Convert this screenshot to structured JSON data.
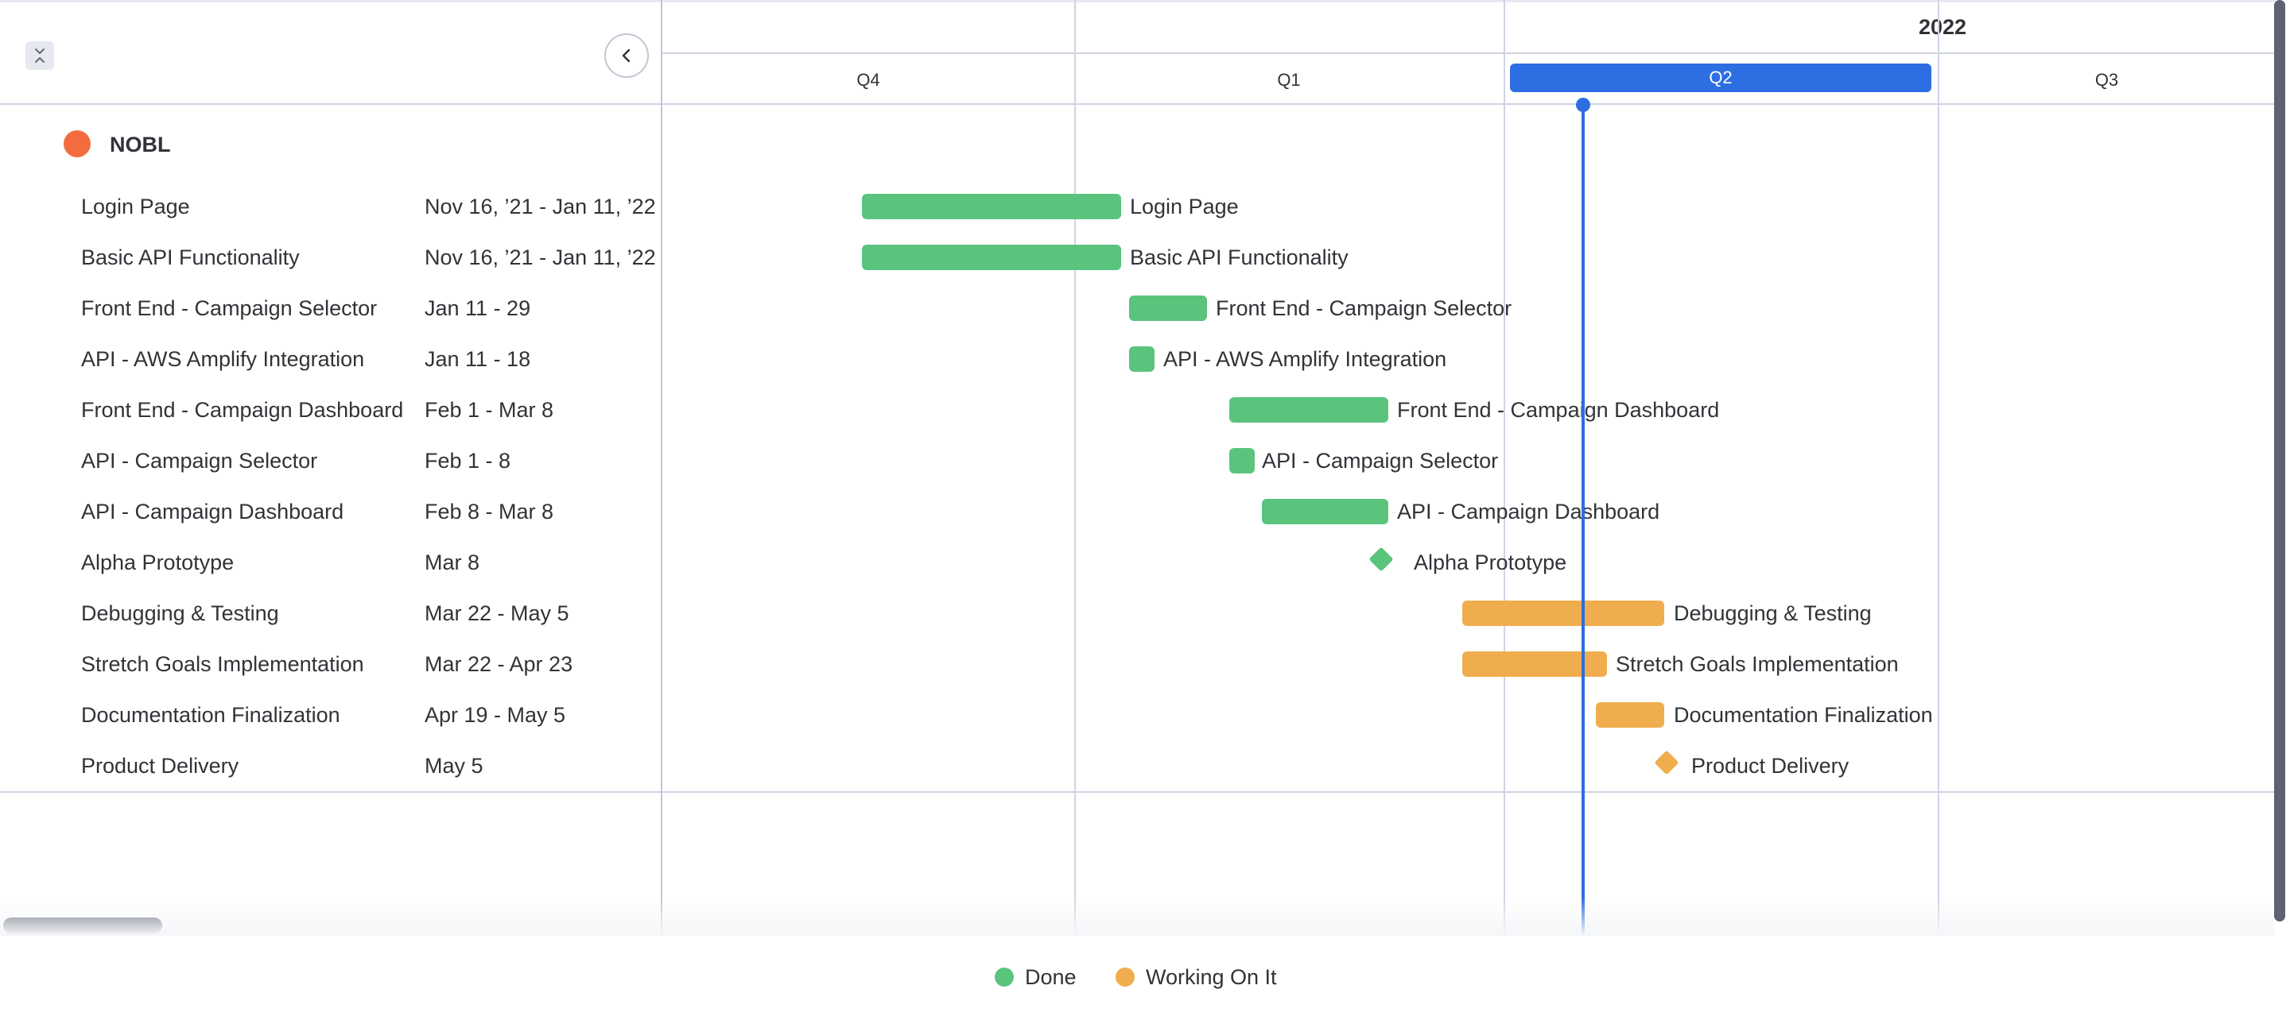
{
  "toolbar": {
    "collapse_icon": "collapse-vertical-icon",
    "back_icon": "chevron-left-icon"
  },
  "group": {
    "name": "NOBL",
    "color": "#f26c3f"
  },
  "tasks": [
    {
      "name": "Login Page",
      "dates": "Nov 16, ’21 - Jan 11, ’22",
      "status": "done",
      "type": "bar"
    },
    {
      "name": "Basic API Functionality",
      "dates": "Nov 16, ’21 - Jan 11, ’22",
      "status": "done",
      "type": "bar"
    },
    {
      "name": "Front End - Campaign Selector",
      "dates": "Jan 11 - 29",
      "status": "done",
      "type": "bar"
    },
    {
      "name": "API - AWS Amplify Integration",
      "dates": "Jan 11 - 18",
      "status": "done",
      "type": "bar"
    },
    {
      "name": "Front End - Campaign Dashboard",
      "dates": "Feb 1 - Mar 8",
      "status": "done",
      "type": "bar"
    },
    {
      "name": "API - Campaign Selector",
      "dates": "Feb 1 - 8",
      "status": "done",
      "type": "bar"
    },
    {
      "name": "API - Campaign Dashboard",
      "dates": "Feb 8 - Mar 8",
      "status": "done",
      "type": "bar"
    },
    {
      "name": "Alpha Prototype",
      "dates": "Mar 8",
      "status": "done",
      "type": "milestone"
    },
    {
      "name": "Debugging & Testing",
      "dates": "Mar 22 - May 5",
      "status": "working",
      "type": "bar"
    },
    {
      "name": "Stretch Goals Implementation",
      "dates": "Mar 22 - Apr 23",
      "status": "working",
      "type": "bar"
    },
    {
      "name": "Documentation Finalization",
      "dates": "Apr 19 - May 5",
      "status": "working",
      "type": "bar"
    },
    {
      "name": "Product Delivery",
      "dates": "May 5",
      "status": "working",
      "type": "milestone"
    }
  ],
  "timeline": {
    "year": "2022",
    "quarters": [
      {
        "label": "Q4",
        "active": false
      },
      {
        "label": "Q1",
        "active": false
      },
      {
        "label": "Q2",
        "active": true
      },
      {
        "label": "Q3",
        "active": false
      }
    ],
    "today": "Apr 19, ’22"
  },
  "legend": [
    {
      "label": "Done",
      "color": "#5ac47d"
    },
    {
      "label": "Working On It",
      "color": "#f0ad4e"
    }
  ],
  "colors": {
    "done": "#5ac47d",
    "working": "#f0ad4e",
    "accent": "#2d6ee3"
  }
}
